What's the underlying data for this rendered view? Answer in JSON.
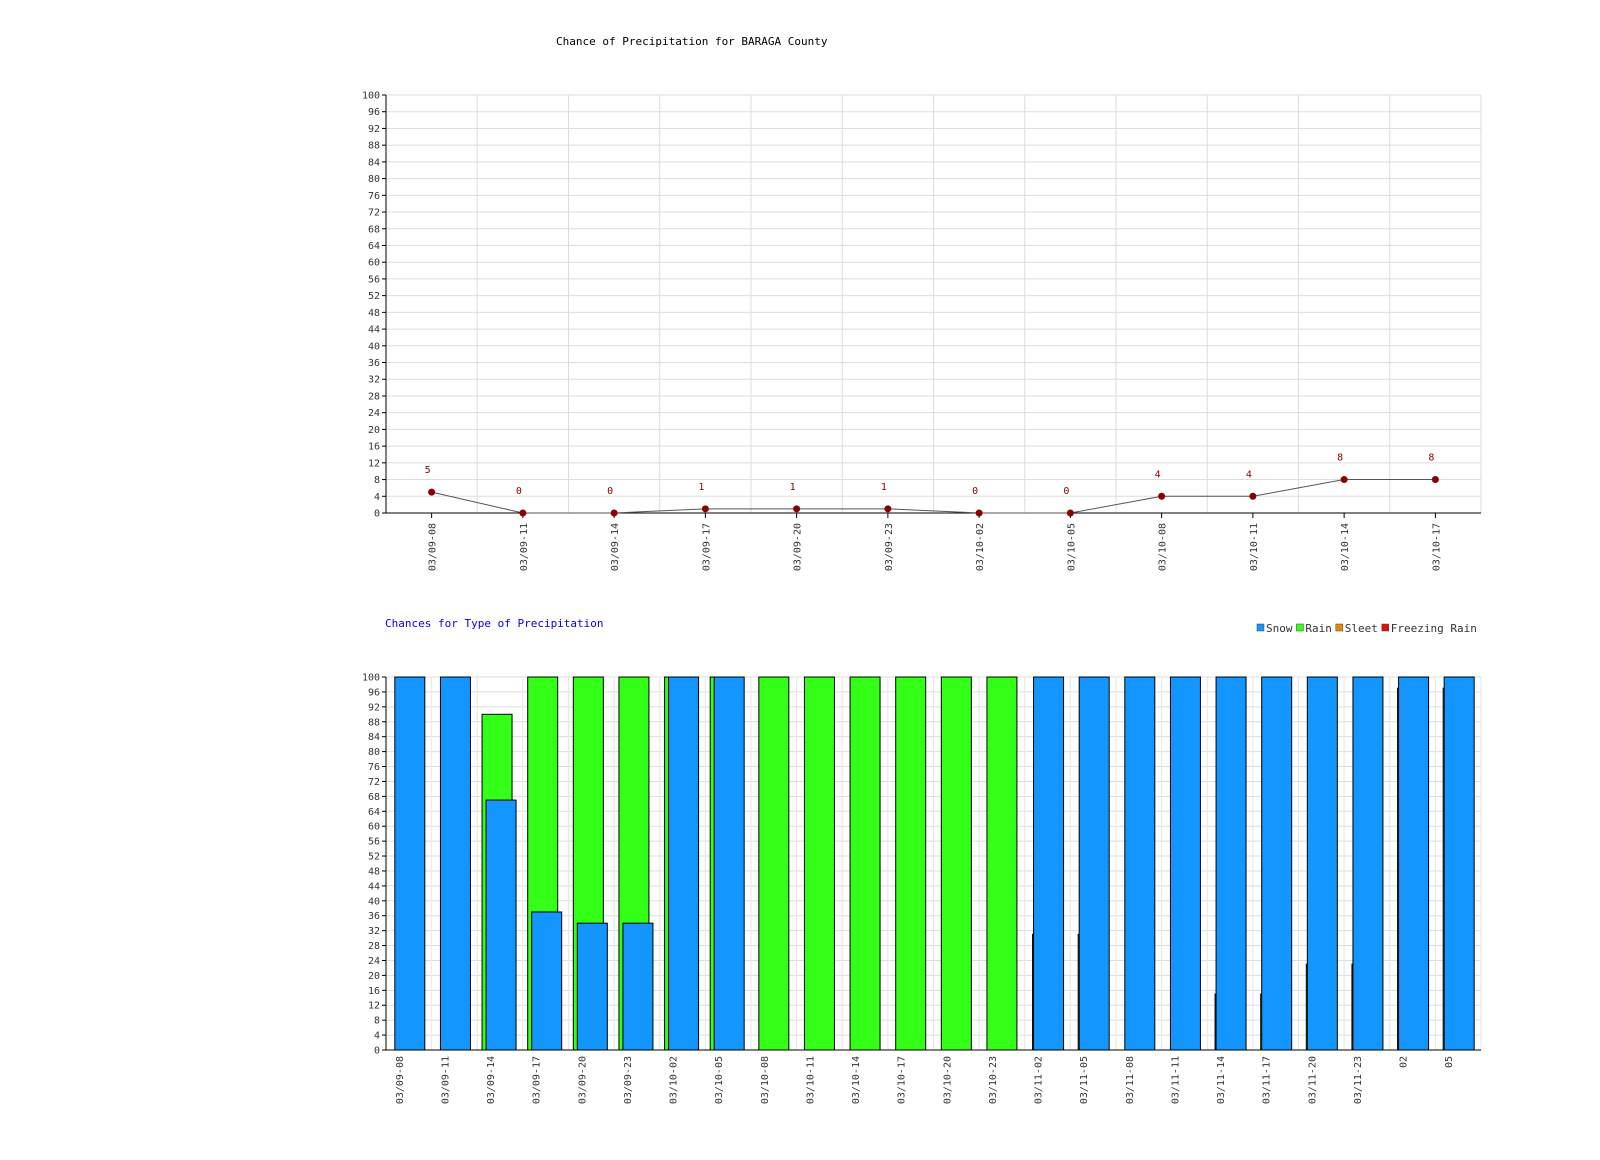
{
  "chart_data": [
    {
      "type": "line",
      "title": "Chance of Precipitation for BARAGA County",
      "xlabel": "",
      "ylabel": "",
      "ylim": [
        0,
        100
      ],
      "yticks": [
        0,
        4,
        8,
        12,
        16,
        20,
        24,
        28,
        32,
        36,
        40,
        44,
        48,
        52,
        56,
        60,
        64,
        68,
        72,
        76,
        80,
        84,
        88,
        92,
        96,
        100
      ],
      "grid": true,
      "categories": [
        "03/09-08",
        "03/09-11",
        "03/09-14",
        "03/09-17",
        "03/09-20",
        "03/09-23",
        "03/10-02",
        "03/10-05",
        "03/10-08",
        "03/10-11",
        "03/10-14",
        "03/10-17"
      ],
      "values": [
        5,
        0,
        0,
        1,
        1,
        1,
        0,
        0,
        4,
        4,
        8,
        8
      ],
      "data_labels": [
        "5",
        "0",
        "0",
        "1",
        "1",
        "1",
        "0",
        "0",
        "4",
        "4",
        "8",
        "8"
      ],
      "colors": {
        "line": "#555555",
        "marker": "#8b0000",
        "label": "#8b0000"
      }
    },
    {
      "type": "bar",
      "title": "Chances for Type of Precipitation",
      "xlabel": "",
      "ylabel": "",
      "ylim": [
        0,
        100
      ],
      "yticks": [
        0,
        4,
        8,
        12,
        16,
        20,
        24,
        28,
        32,
        36,
        40,
        44,
        48,
        52,
        56,
        60,
        64,
        68,
        72,
        76,
        80,
        84,
        88,
        92,
        96,
        100
      ],
      "grid": true,
      "legend_position": "top-right",
      "categories": [
        "03/09-08",
        "03/09-11",
        "03/09-14",
        "03/09-17",
        "03/09-20",
        "03/09-23",
        "03/10-02",
        "03/10-05",
        "03/10-08",
        "03/10-11",
        "03/10-14",
        "03/10-17",
        "03/10-20",
        "03/10-23",
        "03/11-02",
        "03/11-05",
        "03/11-08",
        "03/11-11",
        "03/11-14",
        "03/11-17",
        "03/11-20",
        "03/11-23",
        "02",
        "05"
      ],
      "series": [
        {
          "name": "Snow",
          "color": "#1396ff",
          "values": [
            100,
            100,
            67,
            37,
            34,
            34,
            100,
            100,
            0,
            0,
            0,
            0,
            0,
            0,
            100,
            100,
            100,
            100,
            100,
            100,
            100,
            100,
            100,
            100
          ]
        },
        {
          "name": "Rain",
          "color": "#33ff17",
          "values": [
            0,
            0,
            90,
            100,
            100,
            100,
            100,
            100,
            100,
            100,
            100,
            100,
            100,
            100,
            31,
            31,
            0,
            0,
            15,
            15,
            23,
            23,
            97,
            97
          ]
        },
        {
          "name": "Sleet",
          "color": "#e8870f",
          "values": [
            0,
            0,
            0,
            0,
            0,
            0,
            0,
            0,
            0,
            0,
            0,
            0,
            0,
            0,
            0,
            0,
            0,
            0,
            0,
            0,
            0,
            0,
            0,
            0
          ]
        },
        {
          "name": "Freezing Rain",
          "color": "#e01010",
          "values": [
            0,
            0,
            0,
            0,
            0,
            0,
            0,
            0,
            0,
            0,
            0,
            0,
            0,
            0,
            0,
            0,
            0,
            0,
            0,
            0,
            0,
            0,
            0,
            0
          ]
        }
      ]
    }
  ]
}
